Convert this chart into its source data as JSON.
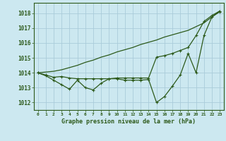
{
  "title": "Graphe pression niveau de la mer (hPa)",
  "background_color": "#cce8f0",
  "grid_color": "#aaccda",
  "line_color": "#2d5a1b",
  "xlim": [
    -0.5,
    23.5
  ],
  "ylim": [
    1011.5,
    1018.7
  ],
  "yticks": [
    1012,
    1013,
    1014,
    1015,
    1016,
    1017,
    1018
  ],
  "xticks": [
    0,
    1,
    2,
    3,
    4,
    5,
    6,
    7,
    8,
    9,
    10,
    11,
    12,
    13,
    14,
    15,
    16,
    17,
    18,
    19,
    20,
    21,
    22,
    23
  ],
  "series1": [
    1014.0,
    1013.8,
    1013.5,
    1013.2,
    1012.9,
    1013.5,
    1013.0,
    1012.85,
    1013.3,
    1013.6,
    1013.6,
    1013.5,
    1013.5,
    1013.5,
    1013.55,
    1012.0,
    1012.4,
    1013.1,
    1013.85,
    1015.3,
    1014.0,
    1016.5,
    1017.75,
    1018.1
  ],
  "series2": [
    1014.0,
    1013.85,
    1013.7,
    1013.75,
    1013.65,
    1013.6,
    1013.6,
    1013.6,
    1013.6,
    1013.6,
    1013.65,
    1013.65,
    1013.65,
    1013.65,
    1013.65,
    1015.05,
    1015.15,
    1015.3,
    1015.5,
    1015.7,
    1016.5,
    1017.45,
    1017.85,
    1018.15
  ],
  "series3": [
    1014.0,
    1014.05,
    1014.1,
    1014.2,
    1014.35,
    1014.5,
    1014.7,
    1014.85,
    1015.05,
    1015.2,
    1015.4,
    1015.55,
    1015.7,
    1015.9,
    1016.05,
    1016.2,
    1016.4,
    1016.55,
    1016.7,
    1016.85,
    1017.1,
    1017.35,
    1017.75,
    1018.15
  ]
}
